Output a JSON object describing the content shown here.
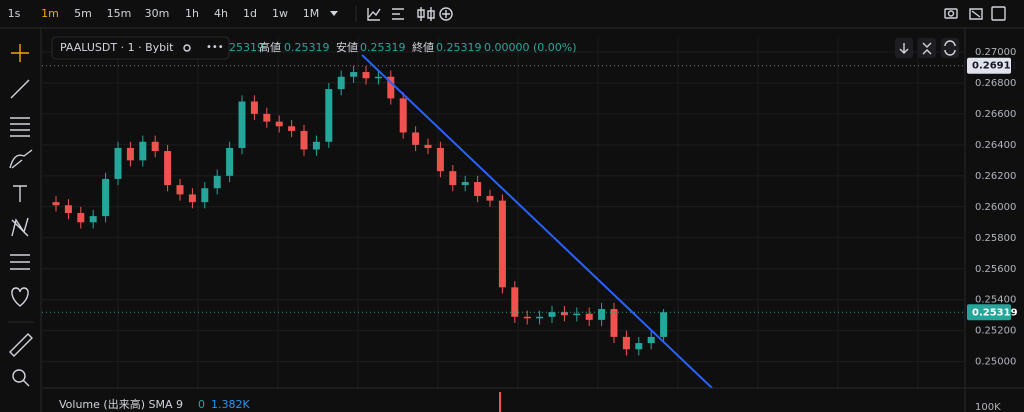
{
  "toolbar": {
    "timeframes": [
      "1s",
      "1m",
      "5m",
      "15m",
      "30m",
      "1h",
      "4h",
      "1d",
      "1w",
      "1M"
    ],
    "active": 1
  },
  "legend": {
    "symbol": "PAALUSDT · 1 · Bybit",
    "open_fragment": "25319",
    "high_label": "高値",
    "high_value": "0.25319",
    "low_label": "安値",
    "low_value": "0.25319",
    "close_label": "終値",
    "close_value": "0.25319",
    "change": "0.00000 (0.00%)"
  },
  "volume": {
    "title": "Volume (出来高) SMA 9",
    "sma": "0",
    "volume": "1.382K",
    "axis_label": "100K"
  },
  "chart_data": {
    "type": "candlestick",
    "up_color": "#26a69a",
    "down_color": "#ef5350",
    "grid": true,
    "ylim": [
      0.2483,
      0.2709
    ],
    "yticks": [
      {
        "value": 0.27,
        "label": "0.27000"
      },
      {
        "value": 0.268,
        "label": "0.26800"
      },
      {
        "value": 0.266,
        "label": "0.26600"
      },
      {
        "value": 0.264,
        "label": "0.26400"
      },
      {
        "value": 0.262,
        "label": "0.26200"
      },
      {
        "value": 0.26,
        "label": "0.26000"
      },
      {
        "value": 0.258,
        "label": "0.25800"
      },
      {
        "value": 0.256,
        "label": "0.25600"
      },
      {
        "value": 0.254,
        "label": "0.25400"
      },
      {
        "value": 0.252,
        "label": "0.25200"
      },
      {
        "value": 0.25,
        "label": "0.25000"
      }
    ],
    "high_line": 0.26911,
    "last_price": 0.25319,
    "open": [
      0.2603,
      0.2601,
      0.2596,
      0.259,
      0.2594,
      0.2618,
      0.2638,
      0.263,
      0.2642,
      0.2636,
      0.2614,
      0.2608,
      0.2603,
      0.2612,
      0.262,
      0.2638,
      0.2668,
      0.266,
      0.2655,
      0.2652,
      0.2649,
      0.2637,
      0.2642,
      0.2676,
      0.2684,
      0.2687,
      0.2683,
      0.2684,
      0.267,
      0.2648,
      0.264,
      0.2638,
      0.2623,
      0.2614,
      0.2616,
      0.2607,
      0.2604,
      0.2548,
      0.2529,
      0.2528,
      0.2529,
      0.2532,
      0.253,
      0.2531,
      0.2527,
      0.2534,
      0.2516,
      0.2508,
      0.2512,
      0.2516
    ],
    "high": [
      0.2607,
      0.2605,
      0.26,
      0.2598,
      0.2622,
      0.2642,
      0.2642,
      0.2646,
      0.2646,
      0.264,
      0.2618,
      0.2612,
      0.2616,
      0.2624,
      0.2642,
      0.2672,
      0.2672,
      0.2664,
      0.2659,
      0.2656,
      0.2653,
      0.2646,
      0.268,
      0.2688,
      0.2691,
      0.2691,
      0.2688,
      0.2688,
      0.2674,
      0.2652,
      0.2644,
      0.2642,
      0.2627,
      0.262,
      0.262,
      0.2611,
      0.2608,
      0.2552,
      0.2533,
      0.2533,
      0.2536,
      0.2536,
      0.2535,
      0.2535,
      0.2538,
      0.2538,
      0.252,
      0.2516,
      0.252,
      0.2534
    ],
    "low": [
      0.2597,
      0.2592,
      0.2586,
      0.2586,
      0.259,
      0.2614,
      0.2626,
      0.2626,
      0.2632,
      0.261,
      0.2604,
      0.2599,
      0.2599,
      0.2608,
      0.2616,
      0.2634,
      0.2656,
      0.2651,
      0.2648,
      0.2645,
      0.2633,
      0.2633,
      0.2638,
      0.2672,
      0.268,
      0.2679,
      0.2679,
      0.2666,
      0.2644,
      0.2636,
      0.2634,
      0.2619,
      0.261,
      0.261,
      0.2603,
      0.26,
      0.2544,
      0.2525,
      0.2524,
      0.2524,
      0.2525,
      0.2526,
      0.2526,
      0.2523,
      0.2523,
      0.2512,
      0.2504,
      0.2504,
      0.2508,
      0.2512
    ],
    "close": [
      0.2601,
      0.2596,
      0.259,
      0.2594,
      0.2618,
      0.2638,
      0.263,
      0.2642,
      0.2636,
      0.2614,
      0.2608,
      0.2603,
      0.2612,
      0.262,
      0.2638,
      0.2668,
      0.266,
      0.2655,
      0.2652,
      0.2649,
      0.2637,
      0.2642,
      0.2676,
      0.2684,
      0.2687,
      0.2683,
      0.2684,
      0.267,
      0.2648,
      0.264,
      0.2638,
      0.2623,
      0.2614,
      0.2616,
      0.2607,
      0.2604,
      0.2548,
      0.2529,
      0.2528,
      0.2529,
      0.2532,
      0.253,
      0.2531,
      0.2527,
      0.2534,
      0.2516,
      0.2508,
      0.2512,
      0.2516,
      0.25319
    ]
  }
}
